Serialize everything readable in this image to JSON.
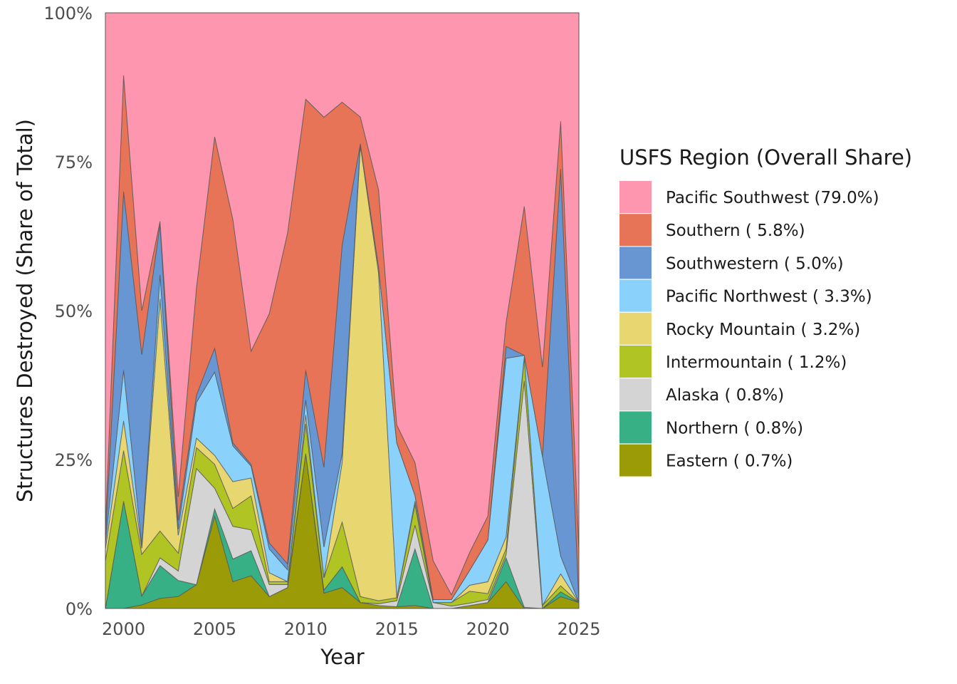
{
  "chart_data": {
    "type": "area",
    "stacked": true,
    "normalized": true,
    "xlabel": "Year",
    "ylabel": "Structures Destroyed (Share of Total)",
    "xlim": [
      1999,
      2025
    ],
    "ylim": [
      0,
      1
    ],
    "x_ticks": [
      2000,
      2005,
      2010,
      2015,
      2020,
      2025
    ],
    "y_ticks": [
      {
        "value": 0,
        "label": "0%"
      },
      {
        "value": 0.25,
        "label": "25%"
      },
      {
        "value": 0.5,
        "label": "50%"
      },
      {
        "value": 0.75,
        "label": "75%"
      },
      {
        "value": 1,
        "label": "100%"
      }
    ],
    "grid": false,
    "legend": {
      "title": "USFS Region (Overall Share)",
      "position": "right"
    },
    "x": [
      1999,
      2000,
      2001,
      2002,
      2003,
      2004,
      2005,
      2006,
      2007,
      2008,
      2009,
      2010,
      2011,
      2012,
      2013,
      2014,
      2015,
      2016,
      2017,
      2018,
      2019,
      2020,
      2021,
      2022,
      2023,
      2024,
      2025
    ],
    "series": [
      {
        "name": "Eastern",
        "legend_label": "Eastern ( 0.7%)",
        "color": "#9b9b07",
        "values": [
          0,
          0,
          0.006,
          0.017,
          0.02,
          0.04,
          0.155,
          0.045,
          0.055,
          0.02,
          0.035,
          0.26,
          0.025,
          0.035,
          0.01,
          0.005,
          0.003,
          0.005,
          0,
          0,
          0.005,
          0.01,
          0.045,
          0,
          0,
          0.02,
          0.01
        ]
      },
      {
        "name": "Northern",
        "legend_label": "Northern ( 0.8%)",
        "color": "#37b086",
        "values": [
          0,
          0.18,
          0.015,
          0.055,
          0.027,
          0,
          0.012,
          0.038,
          0.042,
          0,
          0,
          0,
          0.005,
          0.035,
          0,
          0,
          0,
          0.095,
          0,
          0,
          0,
          0,
          0.04,
          0.002,
          0,
          0.008,
          0
        ]
      },
      {
        "name": "Alaska",
        "legend_label": "Alaska ( 0.8%)",
        "color": "#d4d4d4",
        "values": [
          0,
          0,
          0,
          0.013,
          0.016,
          0.195,
          0.035,
          0.055,
          0.035,
          0.02,
          0.005,
          0,
          0,
          0,
          0,
          0.003,
          0.01,
          0.04,
          0.01,
          0.004,
          0.004,
          0.005,
          0.005,
          0.38,
          0,
          0,
          0
        ]
      },
      {
        "name": "Intermountain",
        "legend_label": "Intermountain ( 1.2%)",
        "color": "#b0c424",
        "values": [
          0.08,
          0.085,
          0.07,
          0.045,
          0.03,
          0.035,
          0.04,
          0.03,
          0.057,
          0.005,
          0.005,
          0.05,
          0.02,
          0.075,
          0.01,
          0.005,
          0.005,
          0.035,
          0,
          0.006,
          0.02,
          0.01,
          0.01,
          0.04,
          0.005,
          0.01,
          0
        ]
      },
      {
        "name": "Rocky Mountain",
        "legend_label": "Rocky Mountain ( 3.2%)",
        "color": "#e8d670",
        "values": [
          0.02,
          0.05,
          0.01,
          0.39,
          0.03,
          0.016,
          0.015,
          0.045,
          0.03,
          0.015,
          0,
          0.015,
          0,
          0.1,
          0.757,
          0.55,
          0,
          0.005,
          0,
          0,
          0.01,
          0.02,
          0.02,
          0,
          0,
          0.02,
          0
        ]
      },
      {
        "name": "Pacific Northwest",
        "legend_label": "Pacific Northwest ( 3.3%)",
        "color": "#8ad2fb",
        "values": [
          0.01,
          0.085,
          0.005,
          0.04,
          0.01,
          0.06,
          0.14,
          0.06,
          0.02,
          0.04,
          0.02,
          0.025,
          0.05,
          0.015,
          0.003,
          0.01,
          0.26,
          0.01,
          0.005,
          0.005,
          0.025,
          0.07,
          0.3,
          0.003,
          0.25,
          0.03,
          0
        ]
      },
      {
        "name": "Southwestern",
        "legend_label": "Southwestern ( 5.0%)",
        "color": "#6796d2",
        "values": [
          0.005,
          0.3,
          0.32,
          0.085,
          0.015,
          0.012,
          0.04,
          0.005,
          0.003,
          0.01,
          0.01,
          0.05,
          0.13,
          0.35,
          0,
          0,
          0,
          0,
          0,
          0,
          0,
          0,
          0.02,
          0,
          0,
          0.65,
          0
        ]
      },
      {
        "name": "Southern",
        "legend_label": "Southern ( 5.8%)",
        "color": "#e77456",
        "values": [
          0.02,
          0.195,
          0.074,
          0.005,
          0.04,
          0.18,
          0.355,
          0.375,
          0.19,
          0.385,
          0.555,
          0.455,
          0.57,
          0.24,
          0.045,
          0.13,
          0.03,
          0.055,
          0.065,
          0.008,
          0.03,
          0.04,
          0.04,
          0.25,
          0.15,
          0.08,
          0.09
        ]
      },
      {
        "name": "Pacific Southwest",
        "legend_label": "Pacific Southwest (79.0%)",
        "color": "#fd96ae",
        "values": [
          0.865,
          0.105,
          0.5,
          0.35,
          0.812,
          0.462,
          0.208,
          0.347,
          0.568,
          0.505,
          0.37,
          0.145,
          0.17,
          0.15,
          0.175,
          0.297,
          0.692,
          0.755,
          0.92,
          0.977,
          0.906,
          0.845,
          0.52,
          0.325,
          0.595,
          0.182,
          0.9
        ]
      }
    ]
  }
}
